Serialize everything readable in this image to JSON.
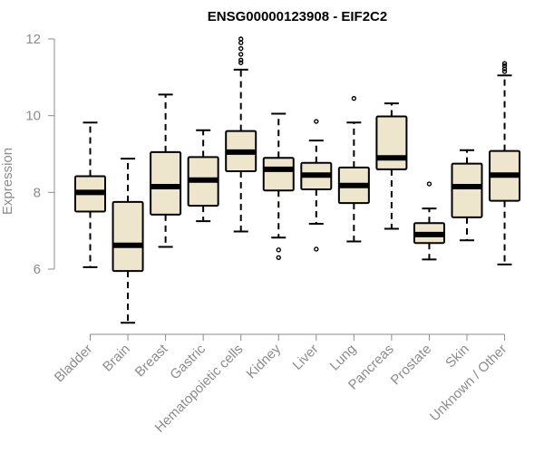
{
  "chart_data": {
    "type": "boxplot",
    "title": "ENSG00000123908 - EIF2C2",
    "xlabel": "",
    "ylabel": "Expression",
    "ylim": [
      4.3,
      12.2
    ],
    "yticks": [
      6,
      8,
      10,
      12
    ],
    "grid": false,
    "box_fill": "#ede6cc",
    "box_stroke": "#000000",
    "median_color": "#000000",
    "axis_color": "#8c8c8c",
    "categories": [
      "Bladder",
      "Brain",
      "Breast",
      "Gastric",
      "Hematopoietic cells",
      "Kidney",
      "Liver",
      "Lung",
      "Pancreas",
      "Prostate",
      "Skin",
      "Unknown / Other"
    ],
    "boxes": [
      {
        "category": "Bladder",
        "whisker_low": 6.05,
        "q1": 7.5,
        "median": 8.0,
        "q3": 8.42,
        "whisker_high": 9.82,
        "outliers": []
      },
      {
        "category": "Brain",
        "whisker_low": 4.6,
        "q1": 5.95,
        "median": 6.62,
        "q3": 7.75,
        "whisker_high": 8.88,
        "outliers": []
      },
      {
        "category": "Breast",
        "whisker_low": 6.58,
        "q1": 7.42,
        "median": 8.15,
        "q3": 9.05,
        "whisker_high": 10.55,
        "outliers": []
      },
      {
        "category": "Gastric",
        "whisker_low": 7.25,
        "q1": 7.65,
        "median": 8.32,
        "q3": 8.92,
        "whisker_high": 9.62,
        "outliers": []
      },
      {
        "category": "Hematopoietic cells",
        "whisker_low": 6.98,
        "q1": 8.55,
        "median": 9.05,
        "q3": 9.6,
        "whisker_high": 11.2,
        "outliers": [
          11.38,
          11.45,
          11.6,
          11.75,
          11.9,
          12.0
        ]
      },
      {
        "category": "Kidney",
        "whisker_low": 6.82,
        "q1": 8.05,
        "median": 8.6,
        "q3": 8.9,
        "whisker_high": 10.05,
        "outliers": [
          6.3,
          6.5
        ]
      },
      {
        "category": "Liver",
        "whisker_low": 7.18,
        "q1": 8.08,
        "median": 8.45,
        "q3": 8.77,
        "whisker_high": 9.35,
        "outliers": [
          6.52,
          9.85
        ]
      },
      {
        "category": "Lung",
        "whisker_low": 6.72,
        "q1": 7.72,
        "median": 8.18,
        "q3": 8.65,
        "whisker_high": 9.82,
        "outliers": [
          10.45
        ]
      },
      {
        "category": "Pancreas",
        "whisker_low": 7.05,
        "q1": 8.6,
        "median": 8.9,
        "q3": 9.98,
        "whisker_high": 10.32,
        "outliers": []
      },
      {
        "category": "Prostate",
        "whisker_low": 6.25,
        "q1": 6.68,
        "median": 6.9,
        "q3": 7.2,
        "whisker_high": 7.58,
        "outliers": [
          8.22
        ]
      },
      {
        "category": "Skin",
        "whisker_low": 6.75,
        "q1": 7.35,
        "median": 8.15,
        "q3": 8.75,
        "whisker_high": 9.1,
        "outliers": []
      },
      {
        "category": "Unknown / Other",
        "whisker_low": 6.12,
        "q1": 7.78,
        "median": 8.45,
        "q3": 9.08,
        "whisker_high": 11.05,
        "outliers": [
          11.15,
          11.22,
          11.3,
          11.36
        ]
      }
    ]
  }
}
